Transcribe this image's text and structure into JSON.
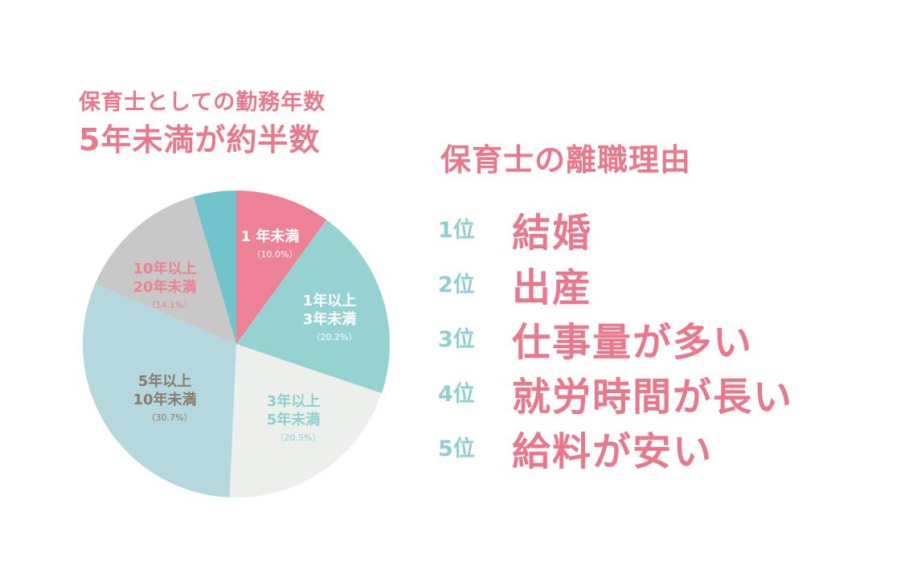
{
  "left_title": {
    "sub": "保育士としての勤務年数",
    "main": "5年未満が約半数"
  },
  "chart_data": {
    "type": "pie",
    "slices": [
      {
        "label_lines": [
          "1 年未満"
        ],
        "value": 10.0,
        "percent_label": "（10.0%）",
        "color": "#ed8195",
        "label_color": "#ffffff"
      },
      {
        "label_lines": [
          "1年以上",
          "3年未満"
        ],
        "value": 20.2,
        "percent_label": "（20.2%）",
        "color": "#97d2d3",
        "label_color": "#ffffff"
      },
      {
        "label_lines": [
          "3年以上",
          "5年未満"
        ],
        "value": 20.5,
        "percent_label": "（20.5%）",
        "color": "#edefec",
        "label_color": "#8ecfd0"
      },
      {
        "label_lines": [
          "5年以上",
          "10年未満"
        ],
        "value": 30.7,
        "percent_label": "（30.7%）",
        "color": "#b4d8dd",
        "label_color": "#8b7a6e"
      },
      {
        "label_lines": [
          "10年以上",
          "20年未満"
        ],
        "value": 14.1,
        "percent_label": "（14.1%）",
        "color": "#c8c8c8",
        "label_color": "#ed8195"
      },
      {
        "label_lines": [],
        "value": 4.5,
        "percent_label": "",
        "color": "#72c4cc",
        "label_color": "#ffffff"
      }
    ]
  },
  "right_title": "保育士の離職理由",
  "ranking": [
    {
      "rank": "1位",
      "reason": "結婚"
    },
    {
      "rank": "2位",
      "reason": "出産"
    },
    {
      "rank": "3位",
      "reason": "仕事量が多い"
    },
    {
      "rank": "4位",
      "reason": "就労時間が長い"
    },
    {
      "rank": "5位",
      "reason": "給料が安い"
    }
  ]
}
